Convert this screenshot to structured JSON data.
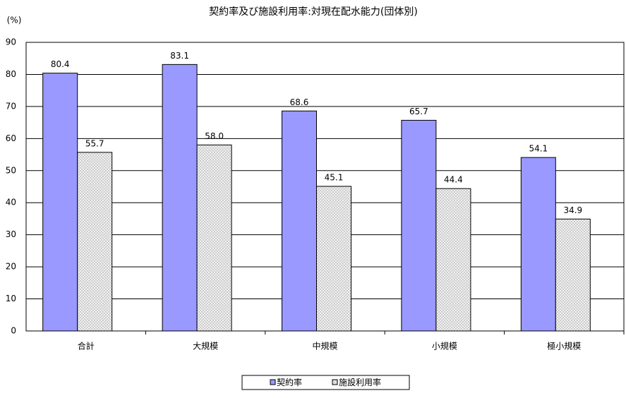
{
  "chart_data": {
    "type": "bar",
    "title": "契約率及び施設利用率:対現在配水能力(団体別)",
    "y_label": "(%)",
    "categories": [
      "合計",
      "大規模",
      "中規模",
      "小規模",
      "極小規模"
    ],
    "series": [
      {
        "name": "契約率",
        "color": "#9999ff",
        "values": [
          80.4,
          83.1,
          68.6,
          65.7,
          54.1
        ],
        "value_labels": [
          "80.4",
          "83.1",
          "68.6",
          "65.7",
          "54.1"
        ]
      },
      {
        "name": "施設利用率",
        "color": "#c8c8c8",
        "values": [
          55.7,
          58.0,
          45.1,
          44.4,
          34.9
        ],
        "value_labels": [
          "55.7",
          "58.0",
          "45.1",
          "44.4",
          "34.9"
        ]
      }
    ],
    "ylim": [
      0,
      90
    ],
    "yticks": [
      0,
      10,
      20,
      30,
      40,
      50,
      60,
      70,
      80,
      90
    ],
    "grid": true,
    "legend": "bottom"
  }
}
